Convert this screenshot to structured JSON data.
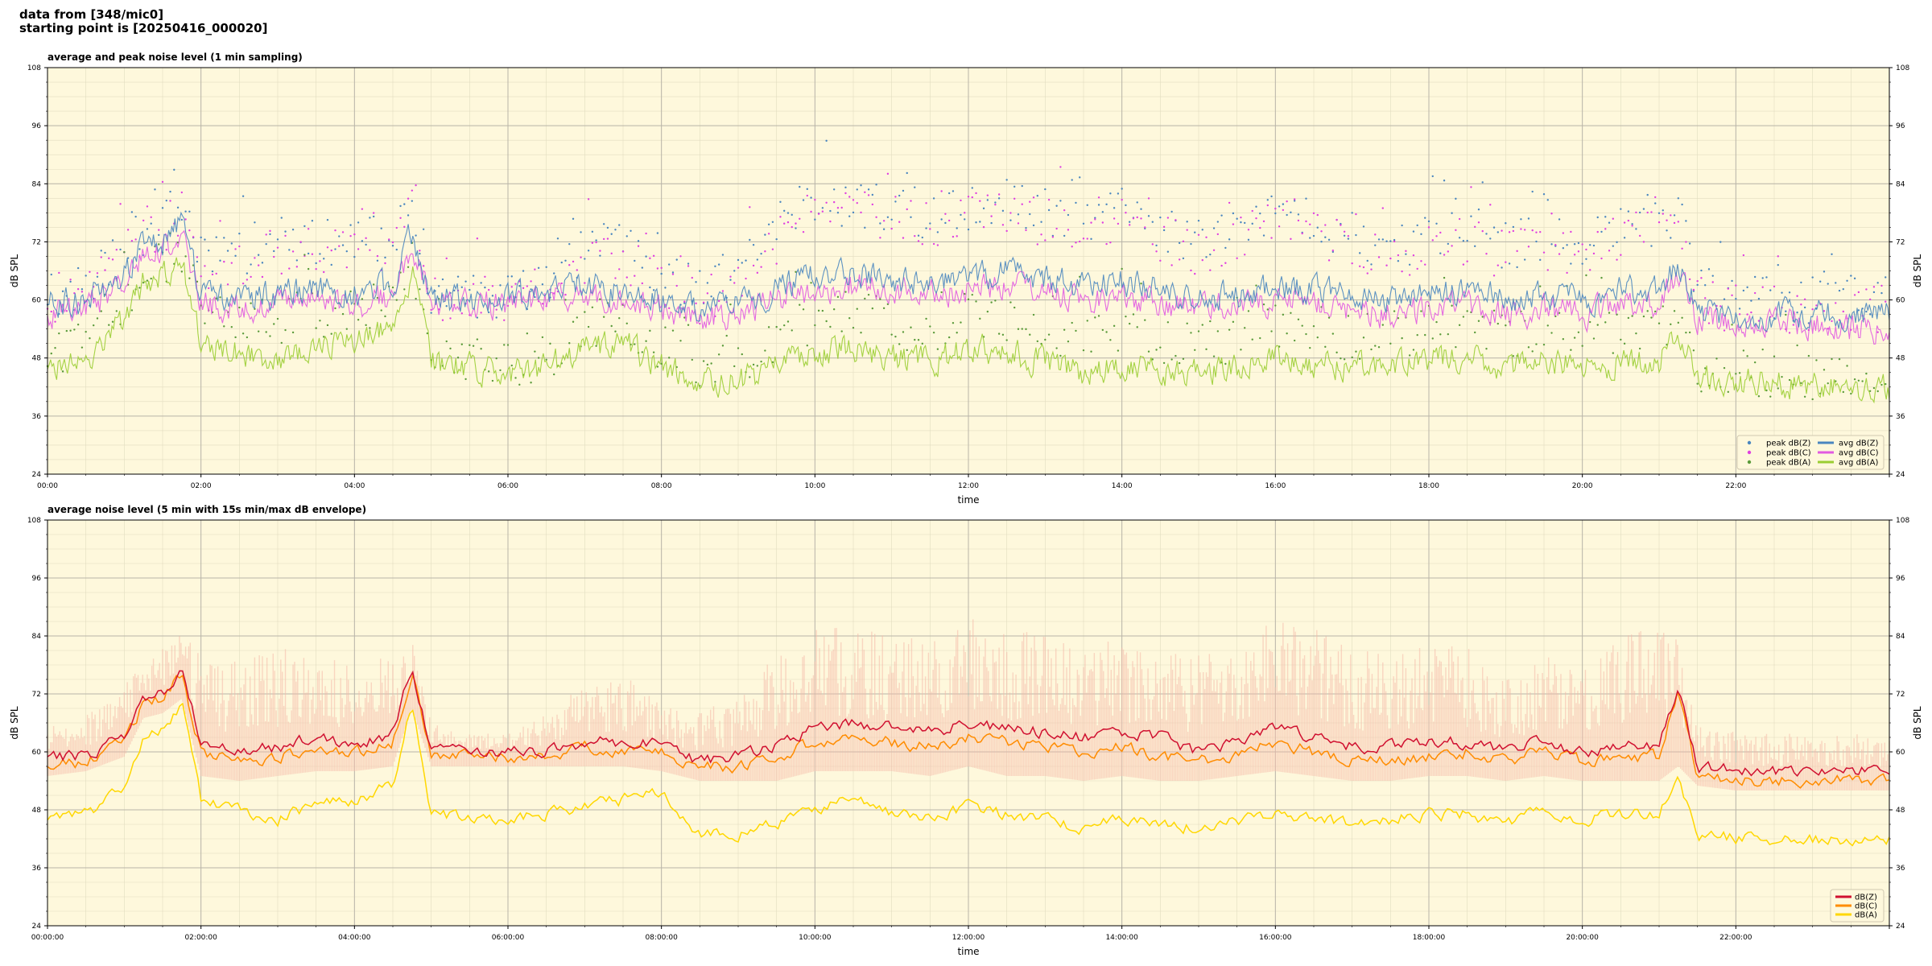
{
  "header": {
    "line1": "data from [348/mic0]",
    "line2": "starting point is [20250416_000020]"
  },
  "colors": {
    "background": "#fef8dc",
    "z_avg": "#4a86bf",
    "c_avg": "#e15ae1",
    "a_avg": "#9acd32",
    "z_peak": "#4a86bf",
    "c_peak": "#e040e0",
    "a_peak": "#5a9a3a",
    "z_5min": "#d01030",
    "c_5min": "#ff8c00",
    "a_5min": "#ffd700",
    "envelope": "#f4b8a8"
  },
  "chart_data": [
    {
      "type": "line",
      "title": "average and peak noise level (1 min sampling)",
      "xlabel": "time",
      "ylabel": "dB SPL",
      "x_unit": "hours",
      "xlim": [
        0,
        24
      ],
      "ylim": [
        24,
        108
      ],
      "yticks": [
        24,
        36,
        48,
        60,
        72,
        84,
        96,
        108
      ],
      "xtick_labels": [
        "00:00",
        "02:00",
        "04:00",
        "06:00",
        "08:00",
        "10:00",
        "12:00",
        "14:00",
        "16:00",
        "18:00",
        "20:00",
        "22:00"
      ],
      "grid": true,
      "legend_position": "bottom-right",
      "legend": [
        "peak dB(Z)",
        "peak dB(C)",
        "peak dB(A)",
        "avg dB(Z)",
        "avg dB(C)",
        "avg dB(A)"
      ],
      "x": [
        0,
        0.5,
        1.0,
        1.25,
        1.5,
        1.75,
        2.0,
        2.5,
        3.0,
        3.5,
        4.0,
        4.5,
        4.75,
        5.0,
        5.5,
        6.0,
        6.5,
        7.0,
        7.5,
        8.0,
        8.5,
        9.0,
        9.5,
        10.0,
        10.5,
        11.0,
        11.5,
        12.0,
        12.5,
        13.0,
        13.5,
        14.0,
        14.5,
        15.0,
        15.5,
        16.0,
        16.5,
        17.0,
        17.5,
        18.0,
        18.5,
        19.0,
        19.5,
        20.0,
        20.5,
        21.0,
        21.25,
        21.5,
        22.0,
        22.5,
        23.0,
        23.5,
        24.0
      ],
      "series": [
        {
          "name": "avg dB(Z)",
          "values": [
            59,
            60,
            65,
            71,
            72,
            76,
            61,
            60,
            61,
            62,
            61,
            63,
            74,
            60,
            60,
            60,
            61,
            63,
            62,
            60,
            58,
            59,
            62,
            65,
            66,
            64,
            63,
            65,
            66,
            64,
            63,
            64,
            62,
            60,
            61,
            63,
            62,
            61,
            60,
            61,
            62,
            60,
            61,
            60,
            62,
            62,
            68,
            58,
            57,
            57,
            57,
            57,
            57
          ]
        },
        {
          "name": "avg dB(C)",
          "values": [
            57,
            58,
            63,
            69,
            70,
            74,
            59,
            58,
            59,
            60,
            59,
            61,
            72,
            59,
            59,
            59,
            60,
            61,
            60,
            58,
            56,
            57,
            60,
            62,
            63,
            62,
            61,
            62,
            63,
            61,
            60,
            61,
            59,
            58,
            59,
            60,
            59,
            58,
            57,
            58,
            59,
            57,
            58,
            57,
            59,
            59,
            66,
            56,
            55,
            55,
            55,
            54,
            54
          ]
        },
        {
          "name": "avg dB(A)",
          "values": [
            46,
            47,
            56,
            64,
            65,
            68,
            52,
            49,
            48,
            50,
            52,
            54,
            66,
            47,
            46,
            45,
            46,
            50,
            51,
            46,
            43,
            43,
            46,
            49,
            50,
            48,
            47,
            50,
            49,
            47,
            45,
            47,
            45,
            45,
            46,
            48,
            47,
            46,
            47,
            48,
            48,
            46,
            48,
            46,
            47,
            47,
            53,
            44,
            43,
            43,
            42,
            42,
            42
          ]
        },
        {
          "name": "peak dB(Z)",
          "values": [
            61,
            63,
            70,
            74,
            76,
            80,
            68,
            70,
            72,
            72,
            71,
            74,
            80,
            62,
            61,
            61,
            63,
            70,
            71,
            65,
            62,
            66,
            74,
            80,
            80,
            79,
            77,
            79,
            80,
            78,
            76,
            78,
            75,
            72,
            74,
            80,
            76,
            73,
            71,
            73,
            74,
            71,
            73,
            71,
            75,
            76,
            78,
            62,
            60,
            60,
            60,
            60,
            60
          ]
        },
        {
          "name": "peak dB(C)",
          "values": [
            60,
            62,
            69,
            72,
            74,
            78,
            66,
            68,
            70,
            70,
            69,
            72,
            78,
            61,
            60,
            60,
            62,
            68,
            69,
            63,
            60,
            64,
            72,
            78,
            78,
            77,
            75,
            77,
            78,
            76,
            74,
            76,
            73,
            70,
            72,
            78,
            74,
            71,
            69,
            71,
            72,
            69,
            71,
            69,
            73,
            74,
            76,
            60,
            58,
            58,
            58,
            58,
            58
          ]
        },
        {
          "name": "peak dB(A)",
          "values": [
            48,
            50,
            60,
            66,
            68,
            70,
            58,
            56,
            55,
            57,
            58,
            60,
            69,
            49,
            48,
            47,
            48,
            55,
            56,
            50,
            46,
            47,
            52,
            56,
            57,
            55,
            54,
            57,
            56,
            54,
            52,
            54,
            52,
            51,
            52,
            55,
            54,
            52,
            53,
            54,
            54,
            52,
            54,
            52,
            53,
            53,
            58,
            46,
            45,
            45,
            44,
            44,
            44
          ]
        }
      ]
    },
    {
      "type": "line",
      "title": "average noise level (5 min with 15s min/max dB envelope)",
      "xlabel": "time",
      "ylabel": "dB SPL",
      "x_unit": "hours",
      "xlim": [
        0,
        24
      ],
      "ylim": [
        24,
        108
      ],
      "yticks": [
        24,
        36,
        48,
        60,
        72,
        84,
        96,
        108
      ],
      "xtick_labels": [
        "00:00:00",
        "02:00:00",
        "04:00:00",
        "06:00:00",
        "08:00:00",
        "10:00:00",
        "12:00:00",
        "14:00:00",
        "16:00:00",
        "18:00:00",
        "20:00:00",
        "22:00:00"
      ],
      "grid": true,
      "legend_position": "bottom-right",
      "legend": [
        "dB(Z)",
        "dB(C)",
        "dB(A)"
      ],
      "x": [
        0,
        0.5,
        1.0,
        1.25,
        1.5,
        1.75,
        2.0,
        2.5,
        3.0,
        3.5,
        4.0,
        4.5,
        4.75,
        5.0,
        5.5,
        6.0,
        6.5,
        7.0,
        7.5,
        8.0,
        8.5,
        9.0,
        9.5,
        10.0,
        10.5,
        11.0,
        11.5,
        12.0,
        12.5,
        13.0,
        13.5,
        14.0,
        14.5,
        15.0,
        15.5,
        16.0,
        16.5,
        17.0,
        17.5,
        18.0,
        18.5,
        19.0,
        19.5,
        20.0,
        20.5,
        21.0,
        21.25,
        21.5,
        22.0,
        22.5,
        23.0,
        23.5,
        24.0
      ],
      "series": [
        {
          "name": "dB(Z)",
          "values": [
            59,
            59,
            63,
            71,
            72,
            77,
            62,
            60,
            61,
            63,
            61,
            64,
            78,
            60,
            60,
            60,
            60,
            62,
            62,
            62,
            58,
            59,
            61,
            65,
            66,
            65,
            64,
            66,
            65,
            64,
            63,
            64,
            63,
            60,
            62,
            65,
            63,
            61,
            61,
            62,
            62,
            60,
            62,
            60,
            61,
            61,
            74,
            57,
            56,
            56,
            56,
            56,
            56
          ]
        },
        {
          "name": "dB(C)",
          "values": [
            57,
            58,
            62,
            70,
            71,
            76,
            60,
            58,
            59,
            61,
            60,
            62,
            77,
            59,
            59,
            59,
            59,
            61,
            60,
            60,
            57,
            57,
            59,
            62,
            63,
            62,
            61,
            63,
            62,
            61,
            60,
            61,
            59,
            58,
            59,
            62,
            60,
            58,
            58,
            59,
            60,
            58,
            60,
            58,
            59,
            59,
            72,
            55,
            54,
            54,
            54,
            54,
            54
          ]
        },
        {
          "name": "dB(A)",
          "values": [
            46,
            47,
            53,
            63,
            64,
            70,
            50,
            48,
            46,
            49,
            50,
            53,
            71,
            47,
            47,
            46,
            47,
            49,
            50,
            52,
            43,
            43,
            45,
            48,
            50,
            47,
            46,
            49,
            47,
            46,
            44,
            46,
            45,
            44,
            46,
            47,
            46,
            45,
            46,
            47,
            47,
            45,
            48,
            46,
            47,
            47,
            55,
            43,
            42,
            42,
            42,
            42,
            42
          ]
        },
        {
          "name": "max dB envelope",
          "values": [
            66,
            68,
            75,
            78,
            82,
            86,
            80,
            80,
            82,
            80,
            78,
            80,
            84,
            66,
            64,
            64,
            68,
            74,
            76,
            70,
            68,
            72,
            80,
            86,
            86,
            84,
            84,
            88,
            86,
            84,
            82,
            84,
            82,
            80,
            82,
            88,
            86,
            82,
            80,
            82,
            82,
            76,
            80,
            78,
            84,
            86,
            84,
            66,
            64,
            64,
            64,
            64,
            64
          ]
        },
        {
          "name": "min dB envelope",
          "values": [
            56,
            57,
            60,
            68,
            69,
            72,
            56,
            55,
            56,
            57,
            57,
            58,
            70,
            58,
            58,
            58,
            58,
            58,
            58,
            57,
            55,
            55,
            55,
            57,
            57,
            57,
            56,
            58,
            56,
            56,
            55,
            56,
            55,
            55,
            56,
            57,
            56,
            55,
            55,
            56,
            56,
            55,
            56,
            55,
            55,
            55,
            58,
            54,
            53,
            53,
            53,
            53,
            53
          ]
        }
      ]
    }
  ]
}
